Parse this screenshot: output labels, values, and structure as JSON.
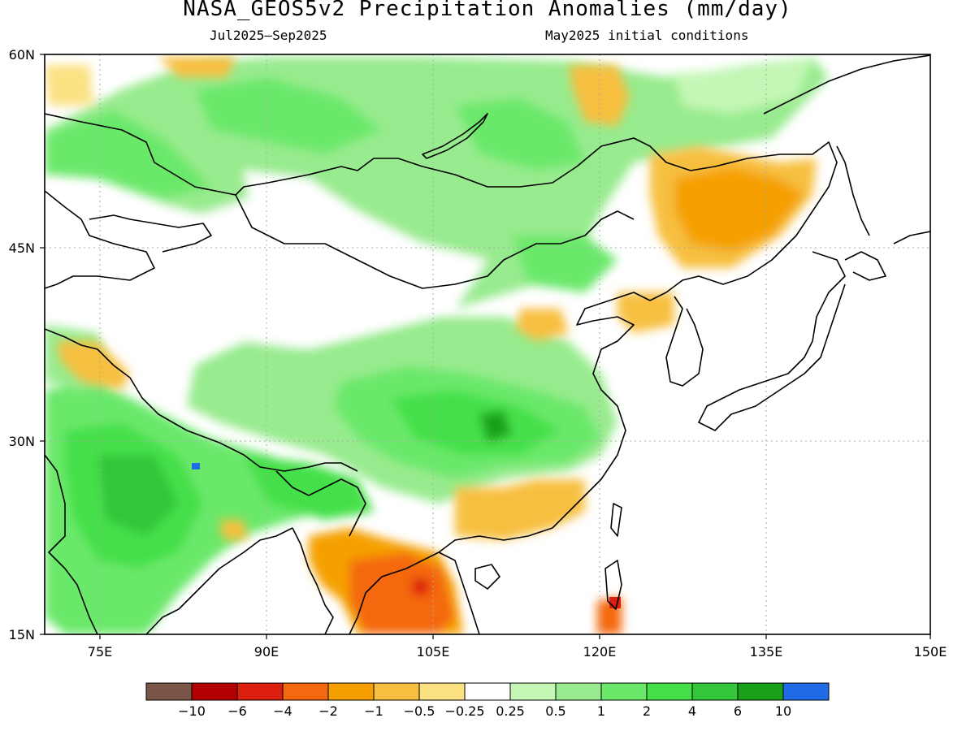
{
  "title": "NASA_GEOS5v2 Precipitation Anomalies (mm/day)",
  "subtitle_left": "Jul2025–Sep2025",
  "subtitle_right": "May2025 initial conditions",
  "lat_labels": [
    "60N",
    "45N",
    "30N",
    "15N"
  ],
  "lon_labels": [
    "75E",
    "90E",
    "105E",
    "120E",
    "135E",
    "150E"
  ],
  "colorbar": {
    "colors": [
      "#7a5548",
      "#b30000",
      "#dc1e0e",
      "#f46910",
      "#f5a000",
      "#f7bf40",
      "#fbe182",
      "#ffffff",
      "#c4f7b5",
      "#98eb8e",
      "#6be86a",
      "#45e048",
      "#33c63b",
      "#18a018",
      "#1f6be8"
    ],
    "labels": [
      "−10",
      "−6",
      "−4",
      "−2",
      "−1",
      "−0.5",
      "−0.25",
      "0.25",
      "0.5",
      "1",
      "2",
      "4",
      "6",
      "10"
    ]
  }
}
